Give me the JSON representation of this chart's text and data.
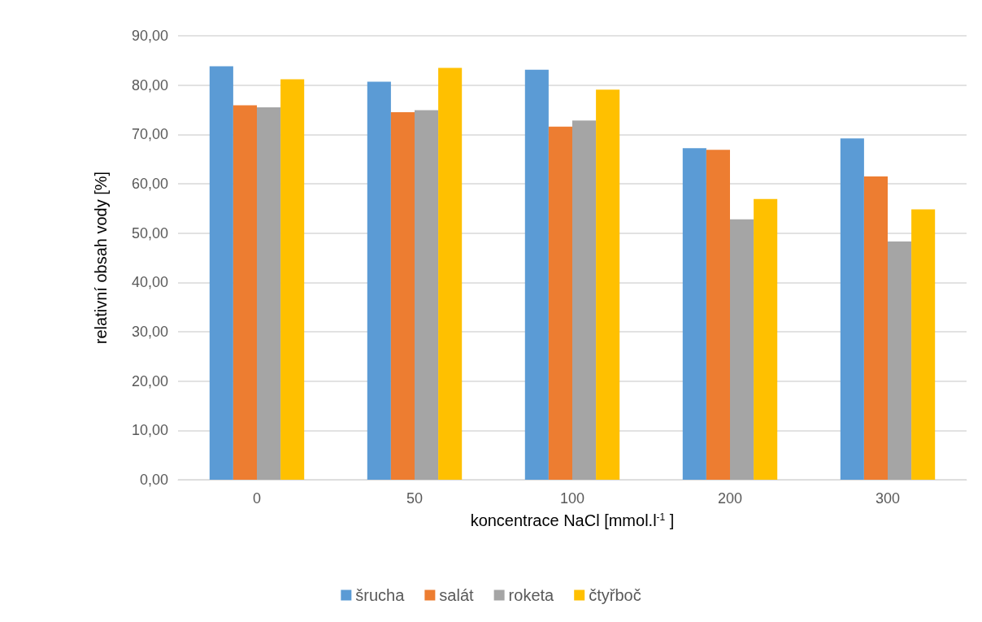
{
  "chart_data": {
    "type": "bar",
    "xlabel": "koncentrace NaCl [mmol.l$^{-1}$ ]",
    "ylabel": "relativní obsah vody [%]",
    "categories": [
      "0",
      "50",
      "100",
      "200",
      "300"
    ],
    "series": [
      {
        "name": "šrucha",
        "color": "#5b9bd5",
        "values": [
          83.8,
          80.7,
          83.1,
          67.2,
          69.2
        ]
      },
      {
        "name": "salát",
        "color": "#ed7d31",
        "values": [
          75.9,
          74.5,
          71.6,
          66.9,
          61.5
        ]
      },
      {
        "name": "roketa",
        "color": "#a5a5a5",
        "values": [
          75.5,
          74.9,
          72.8,
          52.8,
          48.3
        ]
      },
      {
        "name": "čtyřboč",
        "color": "#ffc000",
        "values": [
          81.2,
          83.5,
          79.1,
          56.9,
          54.8
        ]
      }
    ],
    "ylim": [
      0,
      90
    ],
    "yticks": [
      {
        "value": 0,
        "label": "0,00"
      },
      {
        "value": 10,
        "label": "10,00"
      },
      {
        "value": 20,
        "label": "20,00"
      },
      {
        "value": 30,
        "label": "30,00"
      },
      {
        "value": 40,
        "label": "40,00"
      },
      {
        "value": 50,
        "label": "50,00"
      },
      {
        "value": 60,
        "label": "60,00"
      },
      {
        "value": 70,
        "label": "70,00"
      },
      {
        "value": 80,
        "label": "80,00"
      },
      {
        "value": 90,
        "label": "90,00"
      }
    ],
    "grid": "y",
    "legend": "bottom"
  }
}
